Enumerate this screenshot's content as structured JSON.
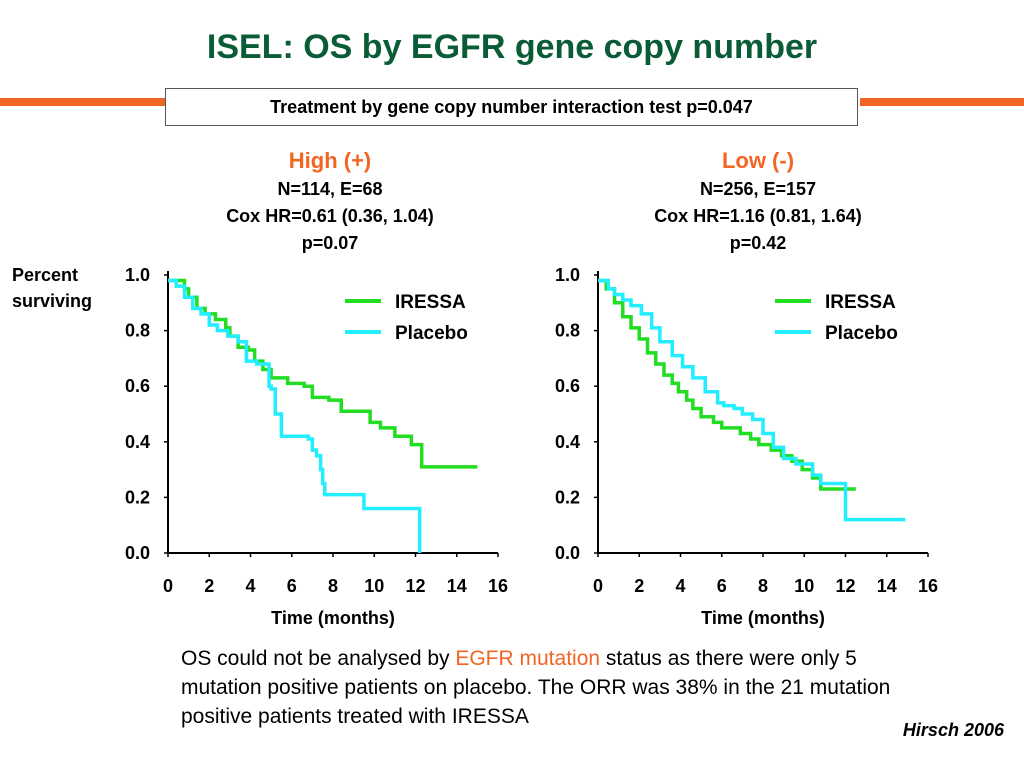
{
  "slide": {
    "title": "ISEL: OS by EGFR gene copy number",
    "banner": "Treatment by gene copy number interaction test p=0.047",
    "ylabel_line1": "Percent",
    "ylabel_line2": "surviving",
    "body_part1": "OS could not be analysed by ",
    "body_highlight": "EGFR mutation",
    "body_part2": " status as there were only 5 mutation positive patients on placebo.  The ORR was 38% in the 21 mutation positive patients treated with IRESSA",
    "citation": "Hirsch 2006",
    "colors": {
      "title": "#0a5c36",
      "accent": "#f26522",
      "iressa": "#22dd22",
      "placebo": "#22eeff"
    }
  },
  "chart_data": [
    {
      "type": "line",
      "group_label": "High (+)",
      "stats": [
        "N=114, E=68",
        "Cox HR=0.61 (0.36, 1.04)",
        "p=0.07"
      ],
      "xlabel": "Time (months)",
      "ylabel": "Percent surviving",
      "xlim": [
        0,
        16
      ],
      "ylim": [
        0,
        1
      ],
      "xticks": [
        "0",
        "2",
        "4",
        "6",
        "8",
        "10",
        "12",
        "14",
        "16"
      ],
      "yticks": [
        "0.0",
        "0.2",
        "0.4",
        "0.6",
        "0.8",
        "1.0"
      ],
      "series": [
        {
          "name": "IRESSA",
          "x": [
            0,
            0.5,
            0.8,
            1.0,
            1.4,
            1.8,
            2.3,
            2.8,
            3.0,
            3.4,
            3.9,
            4.2,
            4.6,
            5.0,
            5.8,
            6.6,
            7.0,
            7.8,
            8.4,
            9.0,
            9.8,
            10.3,
            11.0,
            11.8,
            12.3,
            15.0
          ],
          "y": [
            0.98,
            0.98,
            0.95,
            0.92,
            0.88,
            0.86,
            0.84,
            0.81,
            0.78,
            0.74,
            0.73,
            0.69,
            0.66,
            0.63,
            0.61,
            0.6,
            0.56,
            0.55,
            0.51,
            0.51,
            0.47,
            0.45,
            0.42,
            0.39,
            0.31,
            0.31
          ]
        },
        {
          "name": "Placebo",
          "x": [
            0,
            0.4,
            0.8,
            1.2,
            1.6,
            2.0,
            2.4,
            2.9,
            3.4,
            3.8,
            4.3,
            4.9,
            5.0,
            5.2,
            5.5,
            5.8,
            6.2,
            6.8,
            7.0,
            7.2,
            7.4,
            7.5,
            7.6,
            8.0,
            9.5,
            12.2
          ],
          "y": [
            0.98,
            0.96,
            0.92,
            0.88,
            0.86,
            0.82,
            0.8,
            0.78,
            0.76,
            0.69,
            0.68,
            0.6,
            0.59,
            0.5,
            0.42,
            0.42,
            0.42,
            0.41,
            0.37,
            0.35,
            0.3,
            0.25,
            0.21,
            0.21,
            0.16,
            0.0
          ]
        }
      ]
    },
    {
      "type": "line",
      "group_label": "Low (-)",
      "stats": [
        "N=256, E=157",
        "Cox HR=1.16 (0.81, 1.64)",
        "p=0.42"
      ],
      "xlabel": "Time (months)",
      "ylabel": "",
      "xlim": [
        0,
        16
      ],
      "ylim": [
        0,
        1
      ],
      "xticks": [
        "0",
        "2",
        "4",
        "6",
        "8",
        "10",
        "12",
        "14",
        "16"
      ],
      "yticks": [
        "0.0",
        "0.2",
        "0.4",
        "0.6",
        "0.8",
        "1.0"
      ],
      "series": [
        {
          "name": "IRESSA",
          "x": [
            0,
            0.4,
            0.8,
            1.2,
            1.6,
            2.0,
            2.4,
            2.8,
            3.2,
            3.6,
            3.9,
            4.3,
            4.6,
            5.0,
            5.6,
            6.0,
            6.4,
            6.9,
            7.4,
            7.8,
            8.4,
            8.9,
            9.4,
            9.9,
            10.4,
            10.8,
            12.5
          ],
          "y": [
            0.98,
            0.95,
            0.9,
            0.85,
            0.81,
            0.77,
            0.72,
            0.68,
            0.64,
            0.61,
            0.58,
            0.55,
            0.52,
            0.49,
            0.47,
            0.45,
            0.45,
            0.43,
            0.41,
            0.39,
            0.37,
            0.35,
            0.33,
            0.3,
            0.27,
            0.23,
            0.23
          ]
        },
        {
          "name": "Placebo",
          "x": [
            0,
            0.5,
            0.8,
            1.2,
            1.6,
            2.1,
            2.6,
            3.0,
            3.6,
            4.1,
            4.6,
            5.2,
            5.8,
            6.1,
            6.6,
            7.0,
            7.5,
            8.0,
            8.5,
            9.0,
            9.6,
            10.4,
            10.8,
            12.0,
            14.9
          ],
          "y": [
            0.98,
            0.95,
            0.93,
            0.91,
            0.89,
            0.86,
            0.81,
            0.76,
            0.71,
            0.67,
            0.63,
            0.58,
            0.54,
            0.53,
            0.52,
            0.5,
            0.48,
            0.43,
            0.38,
            0.34,
            0.32,
            0.28,
            0.25,
            0.12,
            0.12
          ]
        }
      ]
    }
  ]
}
